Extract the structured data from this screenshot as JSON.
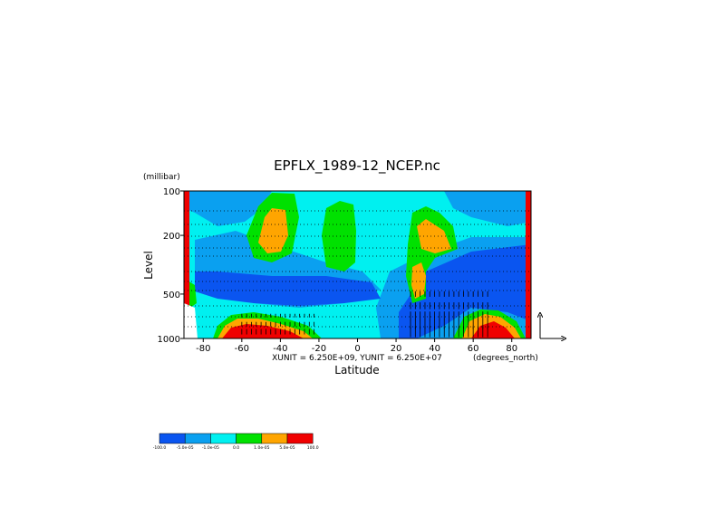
{
  "chart_data": {
    "type": "heatmap",
    "title": "EPFLX_1989-12_NCEP.nc",
    "xlabel": "Latitude",
    "ylabel": "Level",
    "y_unit_label": "(millibar)",
    "x_unit_label": "(degrees_north)",
    "vector_scale_label": "XUNIT = 6.250E+09, YUNIT = 6.250E+07",
    "xlim": [
      -90,
      90
    ],
    "ylim": [
      1000,
      100
    ],
    "y_scale": "log",
    "x_ticks": [
      -80,
      -60,
      -40,
      -20,
      0,
      20,
      40,
      60,
      80
    ],
    "y_ticks": [
      100,
      200,
      500,
      1000
    ],
    "grid": "dotted horizontal lines at levels",
    "colorbar": {
      "colors": [
        "#0a55f0",
        "#0aa0f0",
        "#00f0f0",
        "#00e100",
        "#ffa500",
        "#f00000"
      ],
      "tick_labels": [
        "-100.0",
        "-5.0e-05",
        "-1.0e-05",
        "0.0",
        "1.0e-05",
        "5.0e-05",
        "100.0"
      ]
    },
    "regions": [
      {
        "name": "strong negative (blue)",
        "value": "-5.0e-05 to -1.0e-05",
        "lat_range": [
          -80,
          20
        ],
        "level_range": [
          500,
          300
        ]
      },
      {
        "name": "strong negative (blue)",
        "value": "-5.0e-05 to -1.0e-05",
        "lat_range": [
          20,
          88
        ],
        "level_range": [
          1000,
          300
        ]
      },
      {
        "name": "positive (green/orange)",
        "value": "1.0e-05 to 5.0e-05",
        "lat_range": [
          -55,
          -38
        ],
        "level_range": [
          350,
          120
        ]
      },
      {
        "name": "positive (green/orange)",
        "value": "1.0e-05 to 5.0e-05",
        "lat_range": [
          25,
          45
        ],
        "level_range": [
          550,
          150
        ]
      },
      {
        "name": "near zero (green)",
        "value": "0.0 to 1.0e-05",
        "lat_range": [
          -15,
          0
        ],
        "level_range": [
          450,
          130
        ]
      },
      {
        "name": "strong positive (red)",
        "value": "above 5.0e-05",
        "lat_range": [
          -75,
          -38
        ],
        "level_range": [
          1000,
          800
        ]
      },
      {
        "name": "strong positive (red)",
        "value": "above 5.0e-05",
        "lat_range": [
          52,
          80
        ],
        "level_range": [
          1000,
          820
        ]
      }
    ]
  }
}
